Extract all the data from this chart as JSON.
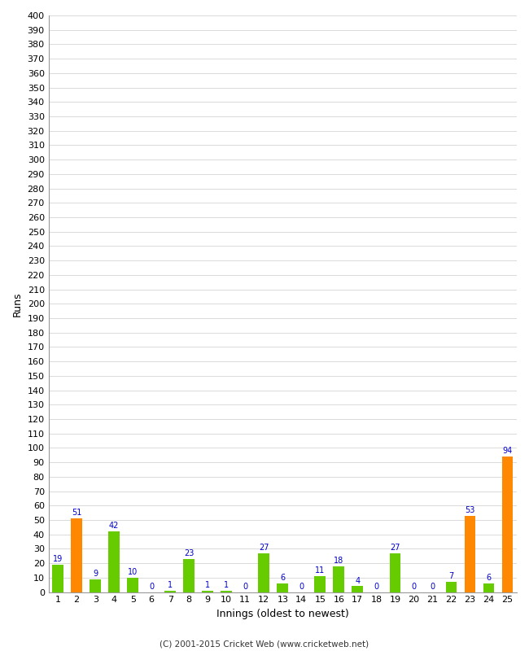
{
  "xlabel": "Innings (oldest to newest)",
  "ylabel": "Runs",
  "footer": "(C) 2001-2015 Cricket Web (www.cricketweb.net)",
  "innings": [
    1,
    2,
    3,
    4,
    5,
    6,
    7,
    8,
    9,
    10,
    11,
    12,
    13,
    14,
    15,
    16,
    17,
    18,
    19,
    20,
    21,
    22,
    23,
    24,
    25
  ],
  "values": [
    19,
    51,
    9,
    42,
    10,
    0,
    1,
    23,
    1,
    1,
    0,
    27,
    6,
    0,
    11,
    18,
    4,
    0,
    27,
    0,
    0,
    7,
    53,
    6,
    94
  ],
  "colors": [
    "#66cc00",
    "#ff8800",
    "#66cc00",
    "#66cc00",
    "#66cc00",
    "#66cc00",
    "#66cc00",
    "#66cc00",
    "#66cc00",
    "#66cc00",
    "#66cc00",
    "#66cc00",
    "#66cc00",
    "#66cc00",
    "#66cc00",
    "#66cc00",
    "#66cc00",
    "#66cc00",
    "#66cc00",
    "#66cc00",
    "#66cc00",
    "#66cc00",
    "#ff8800",
    "#66cc00",
    "#ff8800"
  ],
  "ylim": [
    0,
    400
  ],
  "ytick_step": 10,
  "label_color": "#0000cc",
  "bg_color": "#ffffff",
  "grid_color": "#cccccc",
  "bar_width": 0.6,
  "tick_fontsize": 8,
  "label_fontsize": 7,
  "axis_label_fontsize": 9,
  "footer_fontsize": 7.5
}
